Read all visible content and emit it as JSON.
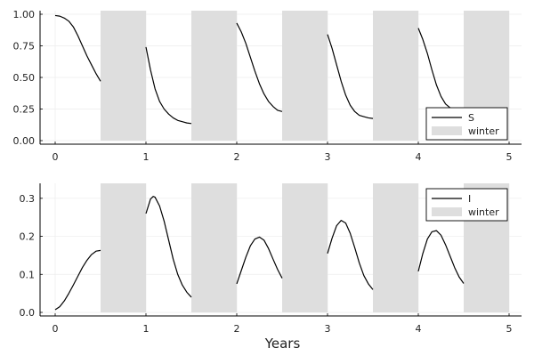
{
  "chart_data": [
    {
      "type": "line",
      "xlim": [
        0,
        5
      ],
      "ylim": [
        0,
        1
      ],
      "xticks": [
        0,
        1,
        2,
        3,
        4,
        5
      ],
      "yticks": [
        0,
        0.25,
        0.5,
        0.75,
        1
      ],
      "ytick_labels": [
        "0.00",
        "0.25",
        "0.50",
        "0.75",
        "1.00"
      ],
      "grid": true,
      "legend_position": "bottom-right",
      "xlabel": "",
      "ylabel": "",
      "winter_intervals": [
        [
          0.5,
          1
        ],
        [
          1.5,
          2
        ],
        [
          2.5,
          3
        ],
        [
          3.5,
          4
        ],
        [
          4.5,
          5
        ]
      ],
      "legend": [
        {
          "label": "S",
          "kind": "line"
        },
        {
          "label": "winter",
          "kind": "band"
        }
      ],
      "series": [
        {
          "name": "S",
          "color": "#000000",
          "segments": [
            [
              [
                0,
                0.99
              ],
              [
                0.05,
                0.985
              ],
              [
                0.1,
                0.97
              ],
              [
                0.15,
                0.945
              ],
              [
                0.2,
                0.9
              ],
              [
                0.25,
                0.83
              ],
              [
                0.3,
                0.75
              ],
              [
                0.35,
                0.67
              ],
              [
                0.4,
                0.6
              ],
              [
                0.45,
                0.53
              ],
              [
                0.5,
                0.47
              ]
            ],
            [
              [
                1.0,
                0.74
              ],
              [
                1.05,
                0.56
              ],
              [
                1.1,
                0.41
              ],
              [
                1.15,
                0.31
              ],
              [
                1.2,
                0.25
              ],
              [
                1.25,
                0.21
              ],
              [
                1.3,
                0.18
              ],
              [
                1.35,
                0.16
              ],
              [
                1.4,
                0.15
              ],
              [
                1.45,
                0.14
              ],
              [
                1.5,
                0.135
              ]
            ],
            [
              [
                2.0,
                0.93
              ],
              [
                2.05,
                0.86
              ],
              [
                2.1,
                0.77
              ],
              [
                2.15,
                0.66
              ],
              [
                2.2,
                0.55
              ],
              [
                2.25,
                0.45
              ],
              [
                2.3,
                0.37
              ],
              [
                2.35,
                0.31
              ],
              [
                2.4,
                0.27
              ],
              [
                2.45,
                0.24
              ],
              [
                2.5,
                0.23
              ]
            ],
            [
              [
                3.0,
                0.84
              ],
              [
                3.05,
                0.73
              ],
              [
                3.1,
                0.6
              ],
              [
                3.15,
                0.47
              ],
              [
                3.2,
                0.36
              ],
              [
                3.25,
                0.28
              ],
              [
                3.3,
                0.23
              ],
              [
                3.35,
                0.2
              ],
              [
                3.4,
                0.19
              ],
              [
                3.45,
                0.18
              ],
              [
                3.5,
                0.175
              ]
            ],
            [
              [
                4.0,
                0.89
              ],
              [
                4.05,
                0.8
              ],
              [
                4.1,
                0.69
              ],
              [
                4.15,
                0.56
              ],
              [
                4.2,
                0.44
              ],
              [
                4.25,
                0.35
              ],
              [
                4.3,
                0.29
              ],
              [
                4.35,
                0.26
              ],
              [
                4.4,
                0.25
              ],
              [
                4.45,
                0.24
              ],
              [
                4.5,
                0.235
              ]
            ]
          ]
        }
      ]
    },
    {
      "type": "line",
      "xlim": [
        0,
        5
      ],
      "ylim": [
        0,
        0.33
      ],
      "xticks": [
        0,
        1,
        2,
        3,
        4,
        5
      ],
      "yticks": [
        0,
        0.1,
        0.2,
        0.3
      ],
      "ytick_labels": [
        "0.0",
        "0.1",
        "0.2",
        "0.3"
      ],
      "grid": true,
      "legend_position": "top-right",
      "xlabel": "Years",
      "ylabel": "",
      "winter_intervals": [
        [
          0.5,
          1
        ],
        [
          1.5,
          2
        ],
        [
          2.5,
          3
        ],
        [
          3.5,
          4
        ],
        [
          4.5,
          5
        ]
      ],
      "legend": [
        {
          "label": "I",
          "kind": "line"
        },
        {
          "label": "winter",
          "kind": "band"
        }
      ],
      "series": [
        {
          "name": "I",
          "color": "#000000",
          "segments": [
            [
              [
                0,
                0.007
              ],
              [
                0.05,
                0.015
              ],
              [
                0.1,
                0.03
              ],
              [
                0.15,
                0.05
              ],
              [
                0.2,
                0.072
              ],
              [
                0.25,
                0.095
              ],
              [
                0.3,
                0.118
              ],
              [
                0.35,
                0.137
              ],
              [
                0.4,
                0.152
              ],
              [
                0.45,
                0.161
              ],
              [
                0.5,
                0.163
              ]
            ],
            [
              [
                1.0,
                0.26
              ],
              [
                1.05,
                0.298
              ],
              [
                1.08,
                0.305
              ],
              [
                1.1,
                0.303
              ],
              [
                1.15,
                0.28
              ],
              [
                1.2,
                0.24
              ],
              [
                1.25,
                0.19
              ],
              [
                1.3,
                0.14
              ],
              [
                1.35,
                0.1
              ],
              [
                1.4,
                0.072
              ],
              [
                1.45,
                0.053
              ],
              [
                1.5,
                0.04
              ]
            ],
            [
              [
                2.0,
                0.075
              ],
              [
                2.05,
                0.11
              ],
              [
                2.1,
                0.145
              ],
              [
                2.15,
                0.175
              ],
              [
                2.2,
                0.193
              ],
              [
                2.25,
                0.198
              ],
              [
                2.3,
                0.19
              ],
              [
                2.35,
                0.168
              ],
              [
                2.4,
                0.14
              ],
              [
                2.45,
                0.113
              ],
              [
                2.5,
                0.09
              ]
            ],
            [
              [
                3.0,
                0.155
              ],
              [
                3.05,
                0.195
              ],
              [
                3.1,
                0.228
              ],
              [
                3.15,
                0.242
              ],
              [
                3.2,
                0.235
              ],
              [
                3.25,
                0.208
              ],
              [
                3.3,
                0.17
              ],
              [
                3.35,
                0.13
              ],
              [
                3.4,
                0.097
              ],
              [
                3.45,
                0.075
              ],
              [
                3.5,
                0.06
              ]
            ],
            [
              [
                4.0,
                0.108
              ],
              [
                4.05,
                0.155
              ],
              [
                4.1,
                0.193
              ],
              [
                4.15,
                0.212
              ],
              [
                4.2,
                0.215
              ],
              [
                4.25,
                0.203
              ],
              [
                4.3,
                0.178
              ],
              [
                4.35,
                0.148
              ],
              [
                4.4,
                0.118
              ],
              [
                4.45,
                0.093
              ],
              [
                4.5,
                0.076
              ]
            ]
          ]
        }
      ]
    }
  ]
}
